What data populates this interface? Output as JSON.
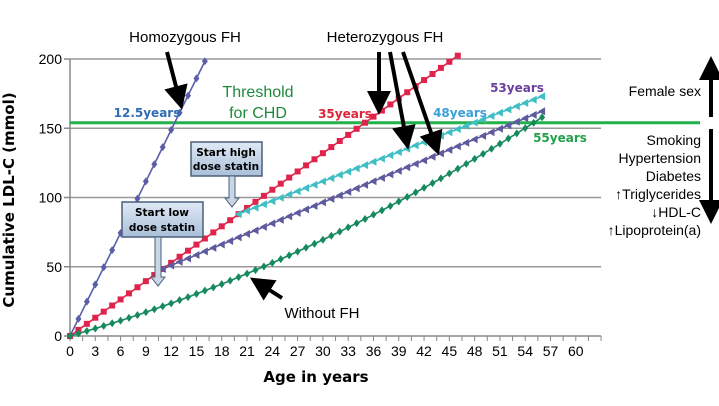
{
  "chart_data": {
    "type": "line",
    "title": "",
    "xlabel": "Age in years",
    "ylabel": "Cumulative LDL-C (mmol)",
    "xlim": [
      0,
      63
    ],
    "ylim": [
      0,
      200
    ],
    "x_ticks": [
      "0",
      "3",
      "6",
      "9",
      "12",
      "15",
      "18",
      "21",
      "24",
      "27",
      "30",
      "33",
      "36",
      "39",
      "42",
      "45",
      "48",
      "51",
      "54",
      "57",
      "60"
    ],
    "y_ticks": [
      "0",
      "50",
      "100",
      "150",
      "200"
    ],
    "grid": "horizontal",
    "threshold": {
      "label_lines": [
        "Threshold",
        "for CHD"
      ],
      "value": 154,
      "color": "#22b14c"
    },
    "series": [
      {
        "name": "Homozygous FH",
        "marker": "diamond",
        "color": "#5a5ea8",
        "x": [
          0,
          1,
          2,
          3,
          4,
          5,
          6,
          7,
          8,
          9,
          10,
          11,
          12,
          13,
          14,
          15,
          16
        ],
        "y": [
          0,
          12.4,
          24.8,
          37.2,
          49.6,
          62,
          74.4,
          86.8,
          99.2,
          111.6,
          124,
          136.4,
          148.8,
          161.2,
          173.6,
          186,
          198.4
        ]
      },
      {
        "name": "Heterozygous FH untreated",
        "marker": "square",
        "color": "#e0234a",
        "x": [
          0,
          1,
          2,
          3,
          4,
          5,
          6,
          7,
          8,
          9,
          10,
          11,
          12,
          13,
          14,
          15,
          16,
          17,
          18,
          19,
          20,
          21,
          22,
          23,
          24,
          25,
          26,
          27,
          28,
          29,
          30,
          31,
          32,
          33,
          34,
          35,
          36,
          37,
          38,
          39,
          40,
          41,
          42,
          43,
          44,
          45,
          46
        ],
        "y": [
          0,
          4.4,
          8.8,
          13.2,
          17.6,
          22,
          26.4,
          30.8,
          35.2,
          39.6,
          44,
          48.4,
          52.8,
          57.2,
          61.6,
          66,
          70.4,
          74.8,
          79.2,
          83.6,
          88,
          92.4,
          96.8,
          101.2,
          105.6,
          110,
          114.4,
          118.8,
          123.2,
          127.6,
          132,
          136.4,
          140.8,
          145.2,
          149.6,
          154,
          158.4,
          162.8,
          167.2,
          171.6,
          176,
          180.4,
          184.8,
          189.2,
          193.6,
          198,
          202.4
        ]
      },
      {
        "name": "Heterozygous FH high dose statin",
        "marker": "triangle-left",
        "color": "#3fbfc4",
        "x": [
          20,
          21,
          22,
          23,
          24,
          25,
          26,
          27,
          28,
          29,
          30,
          31,
          32,
          33,
          34,
          35,
          36,
          37,
          38,
          39,
          40,
          41,
          42,
          43,
          44,
          45,
          46,
          47,
          48,
          49,
          50,
          51,
          52,
          53,
          54,
          55,
          56
        ],
        "y": [
          88,
          90.4,
          92.7,
          95.1,
          97.4,
          99.8,
          102.2,
          104.5,
          106.9,
          109.2,
          111.6,
          114,
          116.3,
          118.7,
          121,
          123.4,
          125.8,
          128.1,
          130.5,
          132.8,
          135.2,
          137.6,
          139.9,
          142.3,
          144.6,
          147,
          149.4,
          151.7,
          154.1,
          156.4,
          158.8,
          161.2,
          163.5,
          165.9,
          168.2,
          170.6,
          173
        ]
      },
      {
        "name": "Heterozygous FH low dose statin",
        "marker": "triangle-left",
        "color": "#5e5a9e",
        "x": [
          11,
          12,
          13,
          14,
          15,
          16,
          17,
          18,
          19,
          20,
          21,
          22,
          23,
          24,
          25,
          26,
          27,
          28,
          29,
          30,
          31,
          32,
          33,
          34,
          35,
          36,
          37,
          38,
          39,
          40,
          41,
          42,
          43,
          44,
          45,
          46,
          47,
          48,
          49,
          50,
          51,
          52,
          53,
          54,
          55,
          56
        ],
        "y": [
          48.4,
          50.9,
          53.5,
          56,
          58.5,
          61.1,
          63.6,
          66.1,
          68.6,
          71.2,
          73.7,
          76.2,
          78.8,
          81.3,
          83.8,
          86.4,
          88.9,
          91.4,
          93.9,
          96.5,
          99,
          101.5,
          104.1,
          106.6,
          109.1,
          111.7,
          114.2,
          116.7,
          119.2,
          121.8,
          124.3,
          126.8,
          129.4,
          131.9,
          134.4,
          137,
          139.5,
          142,
          144.5,
          147.1,
          149.6,
          152.1,
          154.7,
          157.2,
          159.7,
          162.3
        ]
      },
      {
        "name": "Without FH",
        "marker": "diamond",
        "color": "#168a5c",
        "x": [
          0,
          1,
          2,
          3,
          4,
          5,
          6,
          7,
          8,
          9,
          10,
          11,
          12,
          13,
          14,
          15,
          16,
          17,
          18,
          19,
          20,
          21,
          22,
          23,
          24,
          25,
          26,
          27,
          28,
          29,
          30,
          31,
          32,
          33,
          34,
          35,
          36,
          37,
          38,
          39,
          40,
          41,
          42,
          43,
          44,
          45,
          46,
          47,
          48,
          49,
          50,
          51,
          52,
          53,
          54,
          55,
          56
        ],
        "y": [
          0,
          1.8,
          3.6,
          5.4,
          7.3,
          9.2,
          11.1,
          13.1,
          15.1,
          17.2,
          19.3,
          21.5,
          23.6,
          25.9,
          28.1,
          30.4,
          32.8,
          35.1,
          37.5,
          40,
          42.5,
          45,
          47.6,
          50.2,
          52.8,
          55.5,
          58.2,
          61,
          63.8,
          66.6,
          69.5,
          72.4,
          75.4,
          78.4,
          81.4,
          84.5,
          87.6,
          90.7,
          93.9,
          97.1,
          100.4,
          103.7,
          107,
          110.4,
          113.8,
          117.3,
          120.8,
          124.3,
          127.9,
          131.5,
          135.2,
          138.8,
          142.6,
          146.3,
          150.1,
          154,
          157.9
        ]
      }
    ],
    "annotations": {
      "homozygous": "Homozygous FH",
      "heterozygous": "Heterozygous FH",
      "without_fh": "Without FH",
      "high_dose_box": [
        "Start high",
        "dose statin"
      ],
      "low_dose_box": [
        "Start low",
        "dose statin"
      ],
      "crossing_labels": [
        {
          "text": "12.5years",
          "color": "#2e6db5"
        },
        {
          "text": "35years",
          "color": "#e0233a"
        },
        {
          "text": "48years",
          "color": "#3aa0d8"
        },
        {
          "text": "53years",
          "color": "#6b3fa0"
        },
        {
          "text": "55years",
          "color": "#22a04a"
        }
      ]
    },
    "side_panel": {
      "up": [
        "Female sex"
      ],
      "down": [
        "Smoking",
        "Hypertension",
        "Diabetes",
        "↑Triglycerides",
        "↓HDL-C",
        "↑Lipoprotein(a)"
      ]
    }
  }
}
